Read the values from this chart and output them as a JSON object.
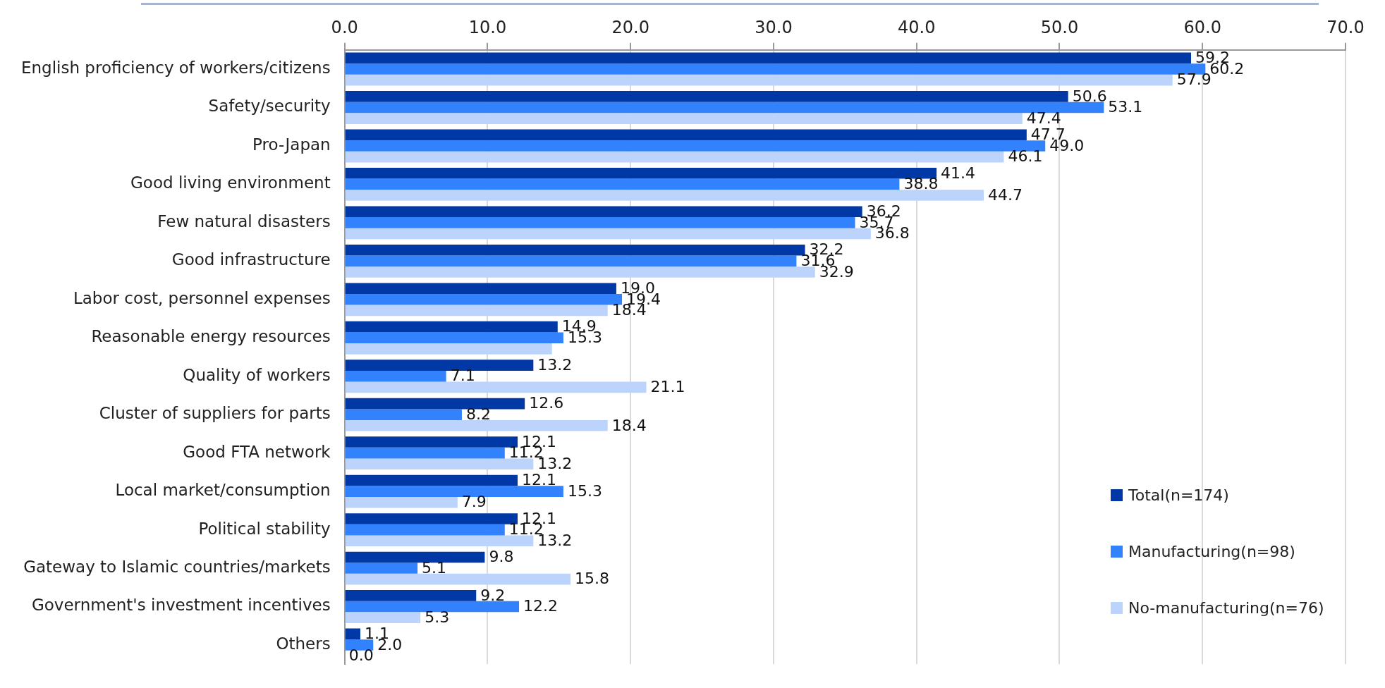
{
  "chart_data": {
    "type": "bar",
    "orientation": "horizontal",
    "categories": [
      "English proficiency of workers/citizens",
      "Safety/security",
      "Pro-Japan",
      "Good living environment",
      "Few natural disasters",
      "Good infrastructure",
      "Labor cost, personnel expenses",
      "Reasonable energy resources",
      "Quality of workers",
      "Cluster of suppliers for parts",
      "Good FTA network",
      "Local market/consumption",
      "Political stability",
      "Gateway to Islamic countries/markets",
      "Government's investment incentives",
      "Others"
    ],
    "series": [
      {
        "name": "Total(n=174)",
        "color": "#0039a6",
        "values": [
          59.2,
          50.6,
          47.7,
          41.4,
          36.2,
          32.2,
          19.0,
          14.9,
          13.2,
          12.6,
          12.1,
          12.1,
          12.1,
          9.8,
          9.2,
          1.1
        ],
        "value_labels": [
          "59.2",
          "50.6",
          "47.7",
          "41.4",
          "36.2",
          "32.2",
          "19.0",
          "14.9",
          "13.2",
          "12.6",
          "12.1",
          "12.1",
          "12.1",
          "9.8",
          "9.2",
          "1.1"
        ]
      },
      {
        "name": "Manufacturing(n=98)",
        "color": "#3282fd",
        "values": [
          60.2,
          53.1,
          49.0,
          38.8,
          35.7,
          31.6,
          19.4,
          15.3,
          7.1,
          8.2,
          11.2,
          15.3,
          11.2,
          5.1,
          12.2,
          2.0
        ],
        "value_labels": [
          "60.2",
          "53.1",
          "49.0",
          "38.8",
          "35.7",
          "31.6",
          "19.4",
          "15.3",
          "7.1",
          "8.2",
          "11.2",
          "15.3",
          "11.2",
          "5.1",
          "12.2",
          "2.0"
        ]
      },
      {
        "name": "No-manufacturing(n=76)",
        "color": "#bcd4fb",
        "values": [
          57.9,
          47.4,
          46.1,
          44.7,
          36.8,
          32.9,
          18.4,
          14.5,
          21.1,
          18.4,
          13.2,
          7.9,
          13.2,
          15.8,
          5.3,
          0.0
        ],
        "value_labels": [
          "57.9",
          "47.4",
          "46.1",
          "44.7",
          "36.8",
          "32.9",
          "18.4",
          null,
          "21.1",
          "18.4",
          "13.2",
          "7.9",
          "13.2",
          "15.8",
          "5.3",
          "0.0"
        ]
      }
    ],
    "xlim": [
      0,
      70
    ],
    "xticks": [
      "0.0",
      "10.0",
      "20.0",
      "30.0",
      "40.0",
      "50.0",
      "60.0",
      "70.0"
    ],
    "grid": "x",
    "legend": "bottom right"
  }
}
